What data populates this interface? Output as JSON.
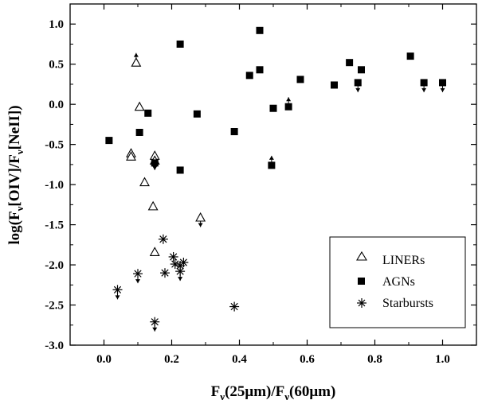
{
  "chart_data": {
    "type": "scatter",
    "title": "",
    "xlabel": {
      "parts": [
        "F",
        "ν",
        "(25μm)/F",
        "ν",
        "(60μm)"
      ]
    },
    "ylabel": {
      "parts": [
        "log(F",
        "ν",
        "[OIV]/F",
        "ν",
        "[NeII])"
      ]
    },
    "xlim": [
      -0.1,
      1.1
    ],
    "ylim": [
      -3.0,
      1.25
    ],
    "x_ticks": [
      0.0,
      0.2,
      0.4,
      0.6,
      0.8,
      1.0
    ],
    "x_tick_labels": [
      "0.0",
      "0.2",
      "0.4",
      "0.6",
      "0.8",
      "1.0"
    ],
    "y_ticks": [
      -3.0,
      -2.5,
      -2.0,
      -1.5,
      -1.0,
      -0.5,
      0.0,
      0.5,
      1.0
    ],
    "y_tick_labels": [
      "-3.0",
      "-2.5",
      "-2.0",
      "-1.5",
      "-1.0",
      "-0.5",
      "0.0",
      "0.5",
      "1.0"
    ],
    "grid": false,
    "legend_position": "bottom-right",
    "series": [
      {
        "name": "LINERs",
        "marker": "open-triangle",
        "points": [
          {
            "x": 0.095,
            "y": 0.52,
            "limit": "lower"
          },
          {
            "x": 0.105,
            "y": -0.03
          },
          {
            "x": 0.08,
            "y": -0.61
          },
          {
            "x": 0.08,
            "y": -0.65
          },
          {
            "x": 0.15,
            "y": -0.64
          },
          {
            "x": 0.15,
            "y": -0.7,
            "limit": "upper"
          },
          {
            "x": 0.12,
            "y": -0.97
          },
          {
            "x": 0.145,
            "y": -1.27
          },
          {
            "x": 0.285,
            "y": -1.41,
            "limit": "upper"
          },
          {
            "x": 0.15,
            "y": -1.84
          }
        ]
      },
      {
        "name": "AGNs",
        "marker": "filled-square",
        "points": [
          {
            "x": 0.015,
            "y": -0.45
          },
          {
            "x": 0.105,
            "y": -0.35
          },
          {
            "x": 0.13,
            "y": -0.11
          },
          {
            "x": 0.15,
            "y": -0.73
          },
          {
            "x": 0.225,
            "y": 0.75
          },
          {
            "x": 0.225,
            "y": -0.82
          },
          {
            "x": 0.275,
            "y": -0.12
          },
          {
            "x": 0.385,
            "y": -0.34
          },
          {
            "x": 0.43,
            "y": 0.36
          },
          {
            "x": 0.46,
            "y": 0.92
          },
          {
            "x": 0.46,
            "y": 0.43
          },
          {
            "x": 0.495,
            "y": -0.76,
            "limit": "lower"
          },
          {
            "x": 0.5,
            "y": -0.05
          },
          {
            "x": 0.545,
            "y": -0.03,
            "limit": "lower"
          },
          {
            "x": 0.58,
            "y": 0.31
          },
          {
            "x": 0.68,
            "y": 0.24
          },
          {
            "x": 0.725,
            "y": 0.52
          },
          {
            "x": 0.75,
            "y": 0.27,
            "limit": "upper"
          },
          {
            "x": 0.76,
            "y": 0.43
          },
          {
            "x": 0.905,
            "y": 0.6
          },
          {
            "x": 0.945,
            "y": 0.27,
            "limit": "upper"
          },
          {
            "x": 1.0,
            "y": 0.27,
            "limit": "upper"
          }
        ]
      },
      {
        "name": "Starbursts",
        "marker": "asterisk",
        "points": [
          {
            "x": 0.04,
            "y": -2.31,
            "limit": "upper"
          },
          {
            "x": 0.1,
            "y": -2.11,
            "limit": "upper"
          },
          {
            "x": 0.15,
            "y": -2.71,
            "limit": "upper"
          },
          {
            "x": 0.175,
            "y": -1.68
          },
          {
            "x": 0.18,
            "y": -2.1
          },
          {
            "x": 0.205,
            "y": -1.9
          },
          {
            "x": 0.21,
            "y": -1.99
          },
          {
            "x": 0.225,
            "y": -2.01
          },
          {
            "x": 0.225,
            "y": -2.08,
            "limit": "upper"
          },
          {
            "x": 0.235,
            "y": -1.97
          },
          {
            "x": 0.385,
            "y": -2.52
          }
        ]
      }
    ]
  }
}
